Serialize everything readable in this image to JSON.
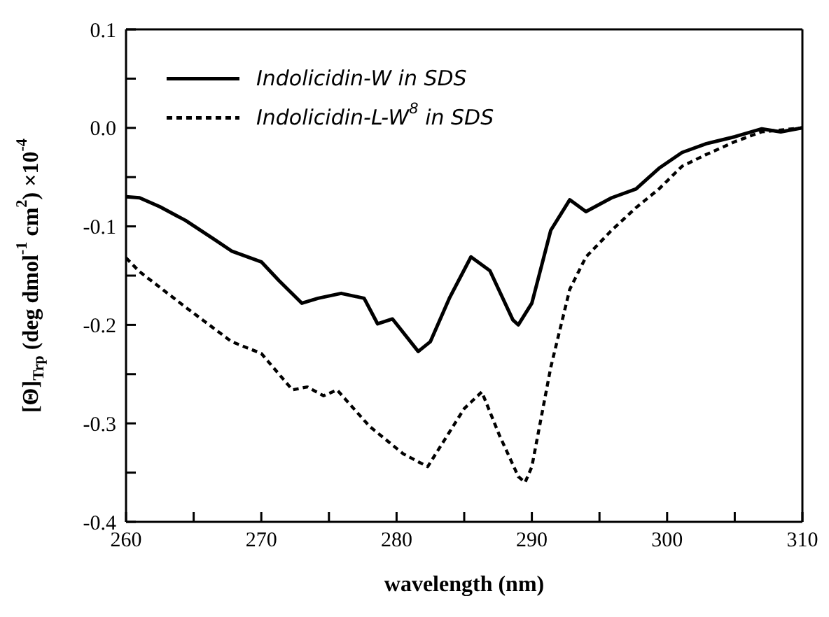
{
  "chart_data": {
    "type": "line",
    "xlabel": "wavelength (nm)",
    "ylabel": "[Θ]$_{Trp}$ (deg dmol$^{-1}$ cm$^{2}$) ×10$^{-4}$",
    "xlim": [
      260,
      310
    ],
    "ylim": [
      -0.4,
      0.1
    ],
    "xticks": [
      260,
      {
        "value": 265,
        "label": null
      },
      270,
      {
        "value": 275,
        "label": null
      },
      280,
      {
        "value": 285,
        "label": null
      },
      290,
      {
        "value": 295,
        "label": null
      },
      300,
      {
        "value": 305,
        "label": null
      },
      310
    ],
    "yticks": [
      {
        "value": -0.4,
        "label": "-0.4"
      },
      {
        "value": -0.35,
        "label": null
      },
      {
        "value": -0.3,
        "label": "-0.3"
      },
      {
        "value": -0.25,
        "label": null
      },
      {
        "value": -0.2,
        "label": "-0.2"
      },
      {
        "value": -0.15,
        "label": null
      },
      {
        "value": -0.1,
        "label": "-0.1"
      },
      {
        "value": -0.05,
        "label": null
      },
      {
        "value": 0,
        "label": "0.0"
      },
      {
        "value": 0.05,
        "label": null
      },
      {
        "value": 0.1,
        "label": "0.1"
      }
    ],
    "legend": "top left",
    "marker": "none",
    "series": [
      {
        "name": "Indolicidin-W in SDS",
        "color": "#000000",
        "line_style": "solid",
        "x": [
          260,
          261,
          262.5,
          264.4,
          266.5,
          267.8,
          270,
          271.3,
          273,
          274.2,
          275.9,
          277.6,
          278.6,
          279.7,
          281.6,
          282.5,
          283.9,
          285.5,
          286.9,
          288.6,
          289,
          290,
          291.4,
          292.8,
          294,
          295.9,
          297.7,
          299.4,
          301.1,
          302.9,
          305,
          307,
          308.4,
          310
        ],
        "values": [
          -0.07,
          -0.071,
          -0.08,
          -0.094,
          -0.113,
          -0.125,
          -0.136,
          -0.155,
          -0.178,
          -0.173,
          -0.168,
          -0.173,
          -0.199,
          -0.194,
          -0.227,
          -0.217,
          -0.173,
          -0.131,
          -0.145,
          -0.195,
          -0.2,
          -0.178,
          -0.104,
          -0.073,
          -0.085,
          -0.071,
          -0.062,
          -0.041,
          -0.025,
          -0.016,
          -0.009,
          -0.001,
          -0.004,
          0
        ]
      },
      {
        "name": "Indolicidin-L-W$^{8}$ in SDS",
        "color": "#000000",
        "line_style": "dashed",
        "x": [
          260,
          261,
          264.4,
          267.8,
          270,
          272.3,
          273.4,
          274.6,
          275.6,
          278,
          280.5,
          282.3,
          285,
          286.3,
          287.6,
          289,
          289.5,
          290,
          291.4,
          292.8,
          294,
          295.9,
          297.7,
          299.4,
          301.1,
          302.9,
          305,
          307,
          310
        ],
        "values": [
          -0.132,
          -0.146,
          -0.182,
          -0.217,
          -0.229,
          -0.266,
          -0.263,
          -0.272,
          -0.266,
          -0.303,
          -0.331,
          -0.344,
          -0.285,
          -0.268,
          -0.312,
          -0.354,
          -0.36,
          -0.344,
          -0.243,
          -0.164,
          -0.131,
          -0.104,
          -0.081,
          -0.062,
          -0.039,
          -0.027,
          -0.014,
          -0.004,
          0
        ]
      }
    ]
  }
}
